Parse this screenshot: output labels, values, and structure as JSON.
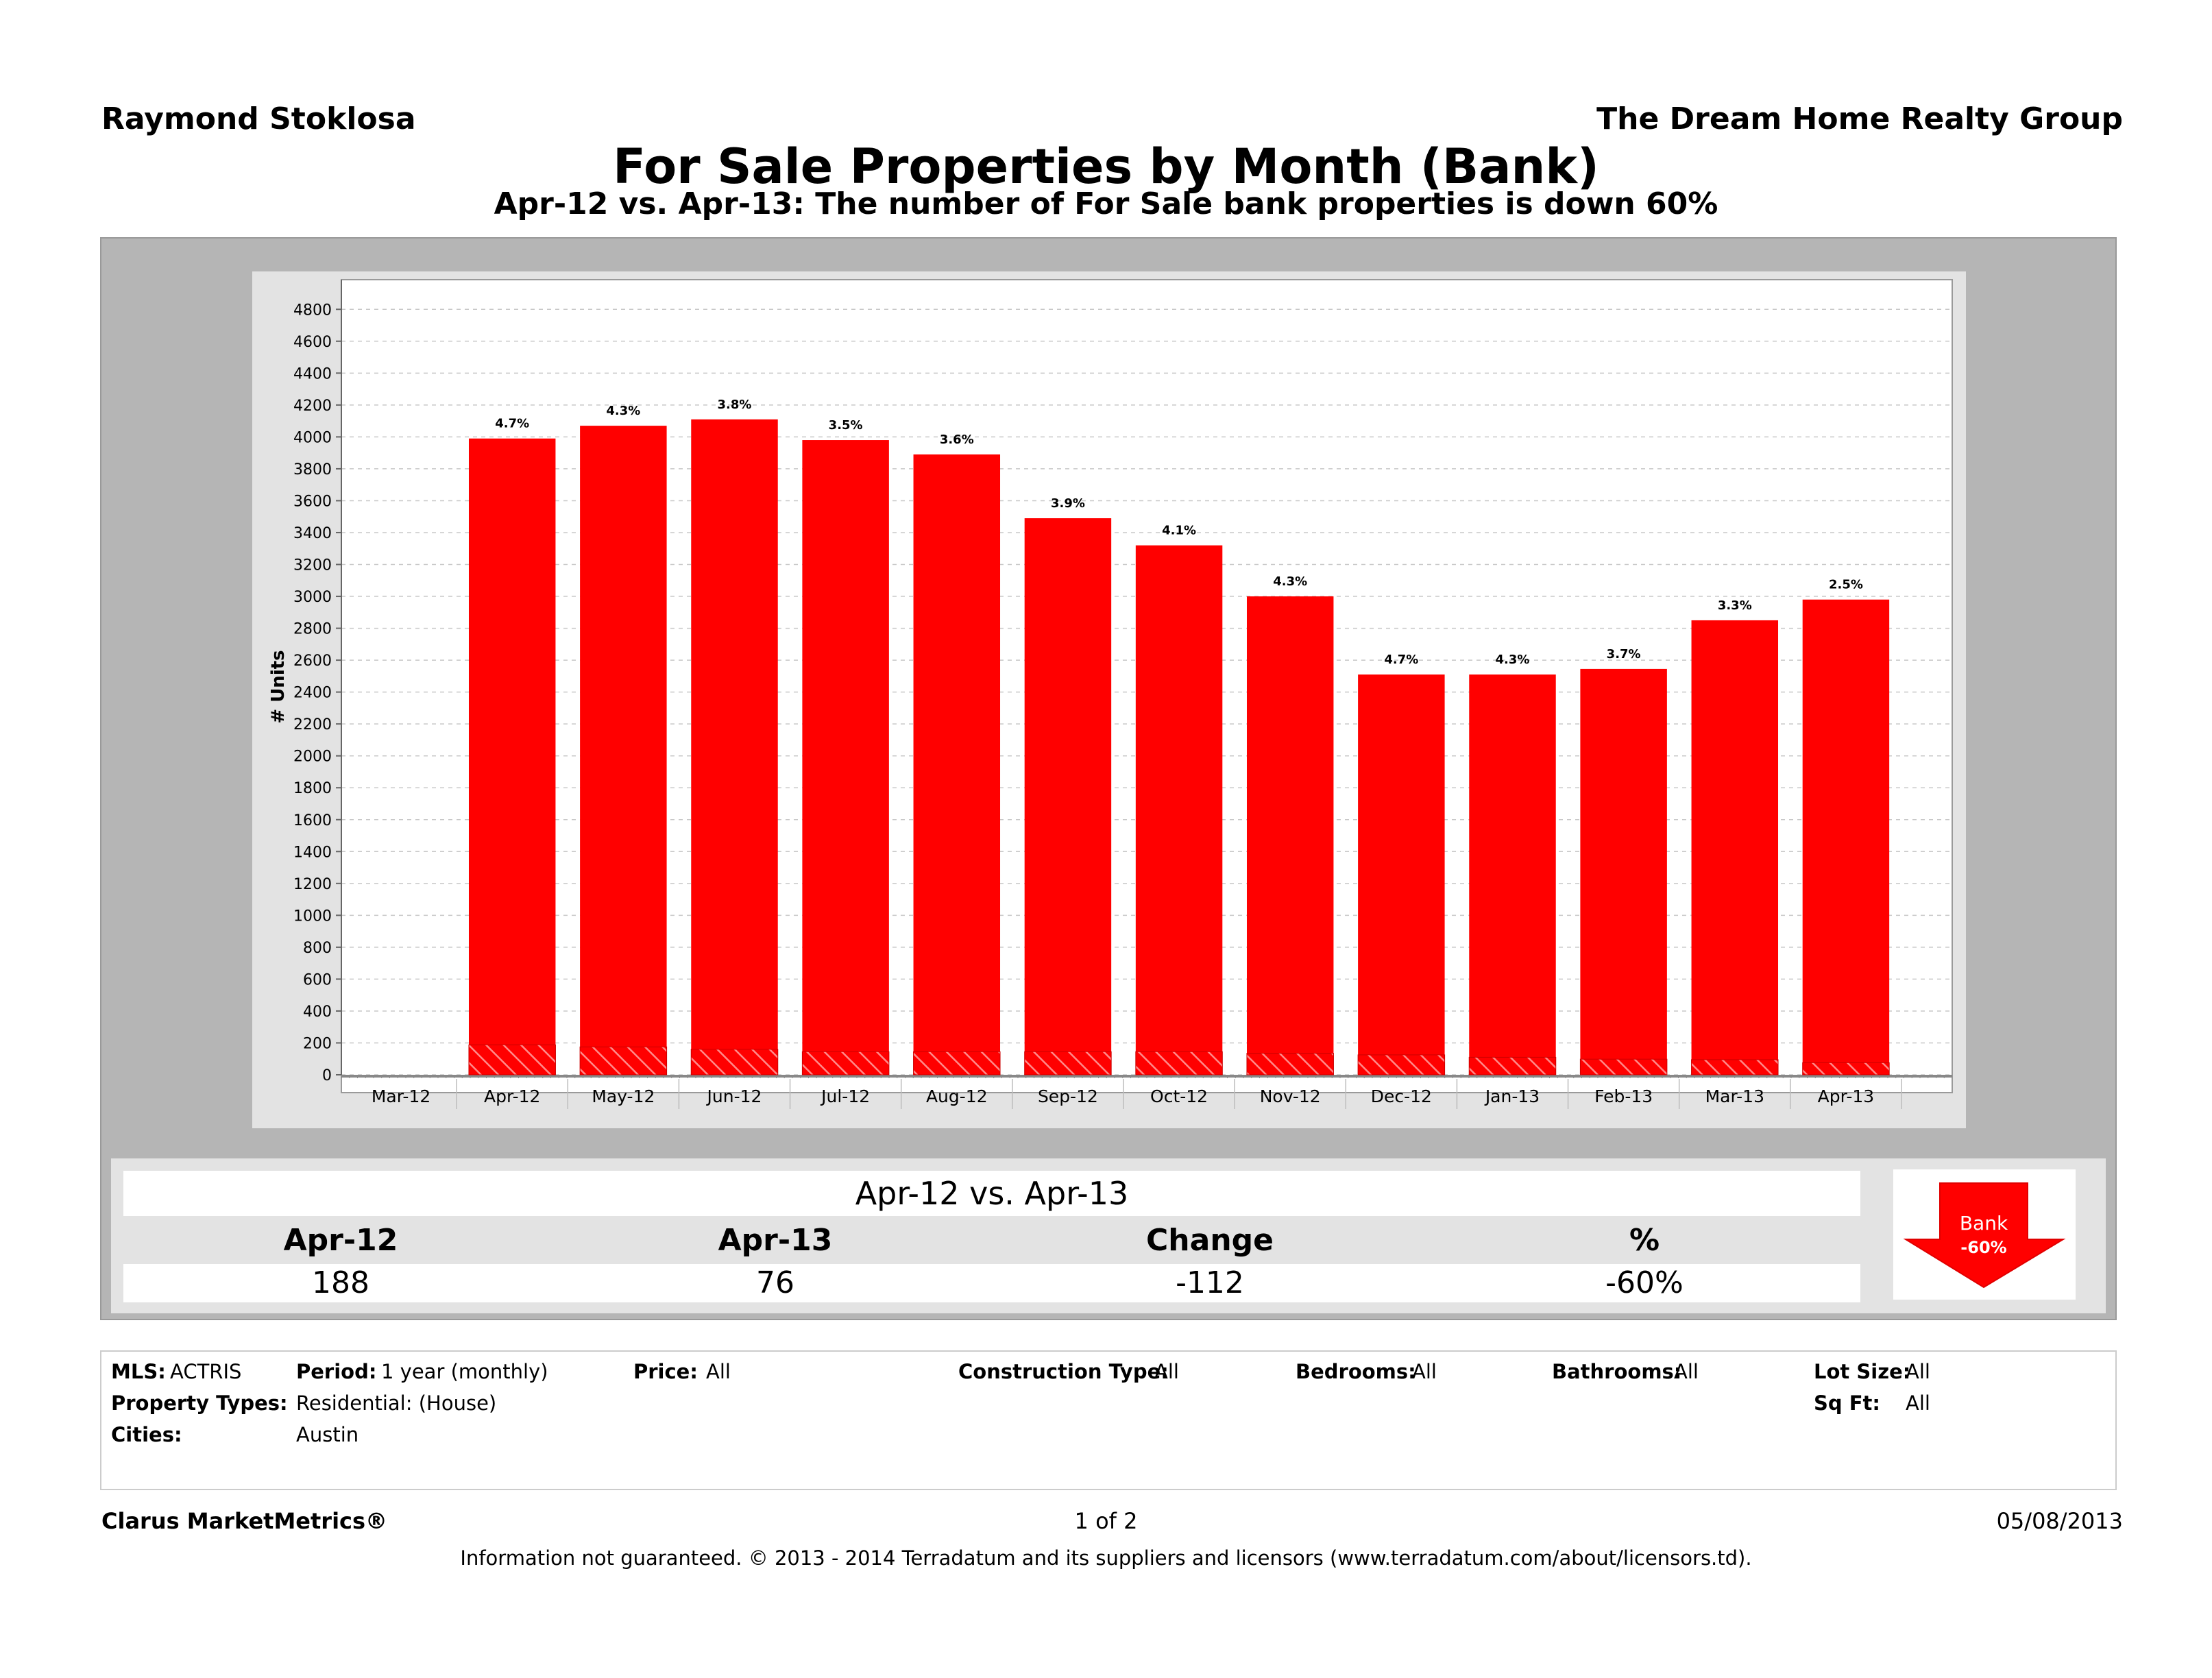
{
  "header": {
    "agent": "Raymond Stoklosa",
    "company": "The Dream Home Realty Group",
    "title": "For Sale Properties by Month (Bank)",
    "subtitle": "Apr-12 vs. Apr-13: The number of For Sale bank properties is down 60%"
  },
  "chart_data": {
    "type": "bar",
    "categories": [
      "Mar-12",
      "Apr-12",
      "May-12",
      "Jun-12",
      "Jul-12",
      "Aug-12",
      "Sep-12",
      "Oct-12",
      "Nov-12",
      "Dec-12",
      "Jan-13",
      "Feb-13",
      "Mar-13",
      "Apr-13"
    ],
    "series": [
      {
        "values": [
          null,
          3990,
          4070,
          4110,
          3980,
          3890,
          3490,
          3320,
          3000,
          2510,
          2510,
          2545,
          2850,
          2980
        ]
      },
      {
        "values": [
          null,
          188,
          175,
          160,
          145,
          145,
          145,
          145,
          135,
          125,
          110,
          98,
          95,
          76
        ]
      }
    ],
    "data_labels": [
      "",
      "4.7%",
      "4.3%",
      "3.8%",
      "3.5%",
      "3.6%",
      "3.9%",
      "4.1%",
      "4.3%",
      "4.7%",
      "4.3%",
      "3.7%",
      "3.3%",
      "2.5%"
    ],
    "ylabel": "# Units",
    "ylim": [
      0,
      4900
    ],
    "yticks": [
      0,
      200,
      400,
      600,
      800,
      1000,
      1200,
      1400,
      1600,
      1800,
      2000,
      2200,
      2400,
      2600,
      2800,
      3000,
      3200,
      3400,
      3600,
      3800,
      4000,
      4200,
      4400,
      4600,
      4800
    ],
    "grid": true,
    "colors": {
      "bar": "#ff0000",
      "hatch": "#ff6a6a",
      "grid": "#c8c8c8"
    }
  },
  "summary": {
    "title": "Apr-12 vs. Apr-13",
    "headers": [
      "Apr-12",
      "Apr-13",
      "Change",
      "%"
    ],
    "values": [
      "188",
      "76",
      "-112",
      "-60%"
    ],
    "badge_label": "Bank",
    "badge_value": "-60%",
    "badge_icon": "down-arrow-icon"
  },
  "filters": {
    "mls_label": "MLS:",
    "mls_value": "ACTRIS",
    "period_label": "Period:",
    "period_value": "1 year (monthly)",
    "price_label": "Price:",
    "price_value": "All",
    "construction_label": "Construction Type:",
    "construction_value": "All",
    "bedrooms_label": "Bedrooms:",
    "bedrooms_value": "All",
    "bathrooms_label": "Bathrooms:",
    "bathrooms_value": "All",
    "lot_label": "Lot Size:",
    "lot_value": "All",
    "ptype_label": "Property Types:",
    "ptype_value": "Residential: (House)",
    "sqft_label": "Sq Ft:",
    "sqft_value": "All",
    "cities_label": "Cities:",
    "cities_value": "Austin"
  },
  "footer": {
    "brand": "Clarus MarketMetrics®",
    "page": "1 of 2",
    "date": "05/08/2013",
    "disclaimer": "Information not guaranteed.  © 2013 - 2014 Terradatum and its suppliers and licensors (www.terradatum.com/about/licensors.td)."
  }
}
